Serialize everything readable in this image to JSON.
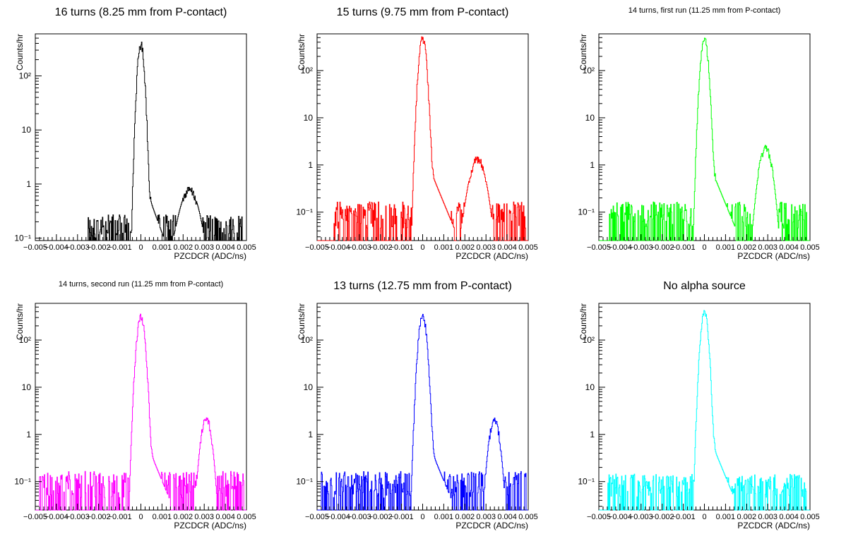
{
  "chart_data": [
    {
      "type": "histogram",
      "title": "16 turns (8.25 mm from P-contact)",
      "xlabel": "PZCDCR (ADC/ns)",
      "ylabel": "Counts/hr",
      "xlim": [
        -0.005,
        0.005
      ],
      "ylim": [
        0.09,
        600
      ],
      "yscale": "log",
      "color": "#000000",
      "x_ticks": [
        "−0.005",
        "−0.004",
        "−0.003",
        "−0.002",
        "−0.001",
        "0",
        "0.001",
        "0.002",
        "0.003",
        "0.004",
        "0.005"
      ],
      "y_ticks": [
        {
          "value": 0.1,
          "label": "10⁻¹"
        },
        {
          "value": 1,
          "label": "1"
        },
        {
          "value": 10,
          "label": "10"
        },
        {
          "value": 100,
          "label": "10²"
        }
      ],
      "floor": 0.1,
      "peaks": [
        {
          "center": 0.0,
          "sigma": 0.00011,
          "amplitude": 380
        },
        {
          "center": 0.0023,
          "sigma": 0.00035,
          "amplitude": 0.75
        }
      ],
      "noise": {
        "from": -0.0025,
        "to": 0.0048,
        "level": 0.17
      }
    },
    {
      "type": "histogram",
      "title": "15 turns (9.75 mm from P-contact)",
      "xlabel": "PZCDCR (ADC/ns)",
      "ylabel": "Counts/hr",
      "xlim": [
        -0.005,
        0.005
      ],
      "ylim": [
        0.025,
        600
      ],
      "yscale": "log",
      "color": "#ff0000",
      "x_ticks": [
        "−0.005",
        "−0.004",
        "−0.003",
        "−0.002",
        "−0.001",
        "0",
        "0.001",
        "0.002",
        "0.003",
        "0.004",
        "0.005"
      ],
      "y_ticks": [
        {
          "value": 0.1,
          "label": "10⁻¹"
        },
        {
          "value": 1,
          "label": "1"
        },
        {
          "value": 10,
          "label": "10"
        },
        {
          "value": 100,
          "label": "10²"
        }
      ],
      "floor": 0.045,
      "peaks": [
        {
          "center": 0.0,
          "sigma": 0.00012,
          "amplitude": 480
        },
        {
          "center": 0.0026,
          "sigma": 0.00028,
          "amplitude": 1.3
        }
      ],
      "noise": {
        "from": -0.0042,
        "to": 0.0049,
        "level": 0.12
      }
    },
    {
      "type": "histogram",
      "title": "14 turns, first run (11.25 mm from P-contact)",
      "xlabel": "PZCDCR (ADC/ns)",
      "ylabel": "Counts/hr",
      "xlim": [
        -0.005,
        0.005
      ],
      "ylim": [
        0.025,
        600
      ],
      "yscale": "log",
      "color": "#00ff00",
      "x_ticks": [
        "−0.005",
        "−0.004",
        "−0.003",
        "−0.002",
        "−0.001",
        "0",
        "0.001",
        "0.002",
        "0.003",
        "0.004",
        "0.005"
      ],
      "y_ticks": [
        {
          "value": 0.1,
          "label": "10⁻¹"
        },
        {
          "value": 1,
          "label": "1"
        },
        {
          "value": 10,
          "label": "10"
        },
        {
          "value": 100,
          "label": "10²"
        }
      ],
      "floor": 0.045,
      "peaks": [
        {
          "center": 0.0,
          "sigma": 0.00012,
          "amplitude": 460
        },
        {
          "center": 0.0029,
          "sigma": 0.00022,
          "amplitude": 2.2
        }
      ],
      "noise": {
        "from": -0.0045,
        "to": 0.0049,
        "level": 0.12
      }
    },
    {
      "type": "histogram",
      "title": "14 turns, second run (11.25 mm from P-contact)",
      "xlabel": "PZCDCR (ADC/ns)",
      "ylabel": "Counts/hr",
      "xlim": [
        -0.005,
        0.005
      ],
      "ylim": [
        0.025,
        600
      ],
      "yscale": "log",
      "color": "#ff00ff",
      "x_ticks": [
        "−0.005",
        "−0.004",
        "−0.003",
        "−0.002",
        "−0.001",
        "0",
        "0.001",
        "0.002",
        "0.003",
        "0.004",
        "0.005"
      ],
      "y_ticks": [
        {
          "value": 0.1,
          "label": "10⁻¹"
        },
        {
          "value": 1,
          "label": "1"
        },
        {
          "value": 10,
          "label": "10"
        },
        {
          "value": 100,
          "label": "10²"
        }
      ],
      "floor": 0.045,
      "peaks": [
        {
          "center": 0.0,
          "sigma": 0.00013,
          "amplitude": 320
        },
        {
          "center": 0.0031,
          "sigma": 0.00018,
          "amplitude": 2.2
        }
      ],
      "noise": {
        "from": -0.0048,
        "to": 0.0049,
        "level": 0.12
      }
    },
    {
      "type": "histogram",
      "title": "13 turns (12.75 mm from P-contact)",
      "xlabel": "PZCDCR (ADC/ns)",
      "ylabel": "Counts/hr",
      "xlim": [
        -0.005,
        0.005
      ],
      "ylim": [
        0.025,
        600
      ],
      "yscale": "log",
      "color": "#0000ff",
      "x_ticks": [
        "−0.005",
        "−0.004",
        "−0.003",
        "−0.002",
        "−0.001",
        "0",
        "0.001",
        "0.002",
        "0.003",
        "0.004",
        "0.005"
      ],
      "y_ticks": [
        {
          "value": 0.1,
          "label": "10⁻¹"
        },
        {
          "value": 1,
          "label": "1"
        },
        {
          "value": 10,
          "label": "10"
        },
        {
          "value": 100,
          "label": "10²"
        }
      ],
      "floor": 0.045,
      "peaks": [
        {
          "center": 0.0,
          "sigma": 0.00013,
          "amplitude": 320
        },
        {
          "center": 0.0034,
          "sigma": 0.00018,
          "amplitude": 2.0
        }
      ],
      "noise": {
        "from": -0.0048,
        "to": 0.0049,
        "level": 0.12
      }
    },
    {
      "type": "histogram",
      "title": "No alpha source",
      "xlabel": "PZCDCR (ADC/ns)",
      "ylabel": "Counts/hr",
      "xlim": [
        -0.005,
        0.005
      ],
      "ylim": [
        0.025,
        600
      ],
      "yscale": "log",
      "color": "#00ffff",
      "x_ticks": [
        "−0.005",
        "−0.004",
        "−0.003",
        "−0.002",
        "−0.001",
        "0",
        "0.001",
        "0.002",
        "0.003",
        "0.004",
        "0.005"
      ],
      "y_ticks": [
        {
          "value": 0.1,
          "label": "10⁻¹"
        },
        {
          "value": 1,
          "label": "1"
        },
        {
          "value": 10,
          "label": "10"
        },
        {
          "value": 100,
          "label": "10²"
        }
      ],
      "floor": 0.045,
      "peaks": [
        {
          "center": 0.0,
          "sigma": 0.00012,
          "amplitude": 390
        }
      ],
      "noise": {
        "from": -0.0046,
        "to": 0.0049,
        "level": 0.1
      }
    }
  ]
}
